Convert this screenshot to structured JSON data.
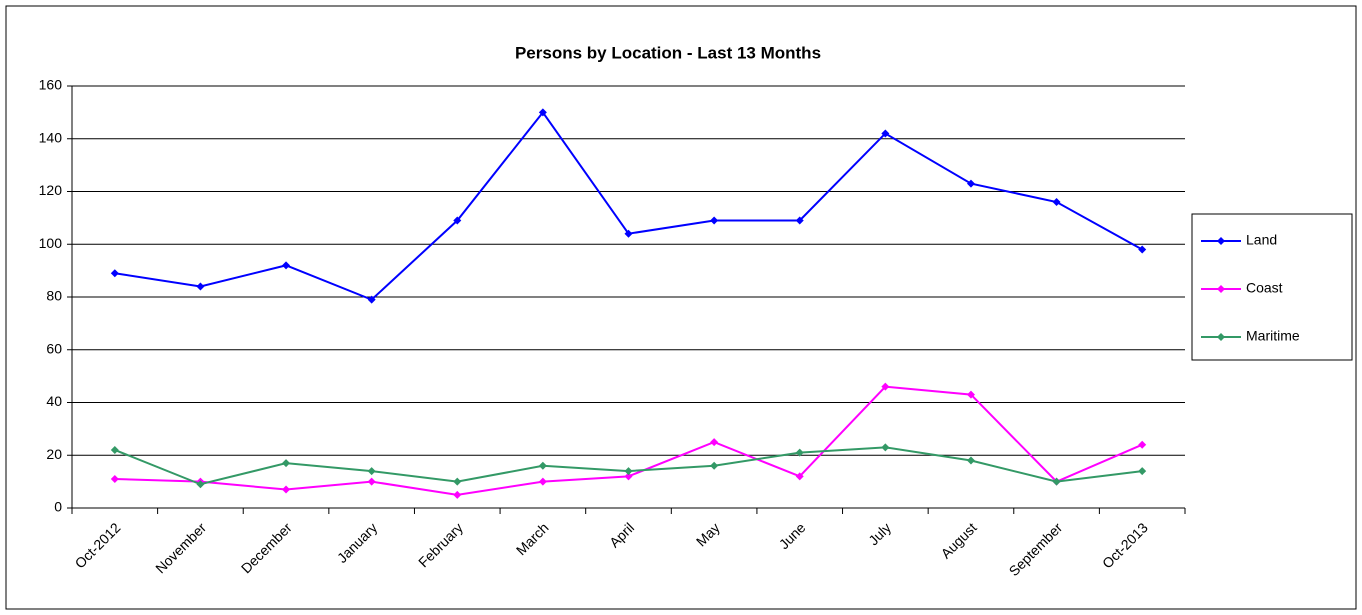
{
  "chart_data": {
    "type": "line",
    "title": "Persons by Location - Last 13 Months",
    "categories": [
      "Oct-2012",
      "November",
      "December",
      "January",
      "February",
      "March",
      "April",
      "May",
      "June",
      "July",
      "August",
      "September",
      "Oct-2013"
    ],
    "series": [
      {
        "name": "Land",
        "color": "#0000ff",
        "values": [
          89,
          84,
          92,
          79,
          109,
          150,
          104,
          109,
          109,
          142,
          123,
          116,
          98
        ]
      },
      {
        "name": "Coast",
        "color": "#ff00ff",
        "values": [
          11,
          10,
          7,
          10,
          5,
          10,
          12,
          25,
          12,
          46,
          43,
          10,
          24
        ]
      },
      {
        "name": "Maritime",
        "color": "#339966",
        "values": [
          22,
          9,
          17,
          14,
          10,
          16,
          14,
          16,
          21,
          23,
          18,
          10,
          14
        ]
      }
    ],
    "ylim": [
      0,
      160
    ],
    "yticks": [
      0,
      20,
      40,
      60,
      80,
      100,
      120,
      140,
      160
    ],
    "grid": true,
    "legend": "right"
  }
}
